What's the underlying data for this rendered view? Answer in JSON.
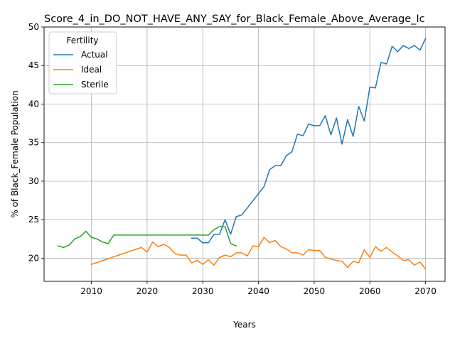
{
  "chart_data": {
    "type": "line",
    "title": "Score_4_in_DO_NOT_HAVE_ANY_SAY_for_Black_Female_Above_Average_Ic",
    "xlabel": "Years",
    "ylabel": "% of Black_Female Population",
    "xlim": [
      2001.5,
      2073.5
    ],
    "ylim": [
      17.0,
      50.0
    ],
    "xticks": [
      2010,
      2020,
      2030,
      2040,
      2050,
      2060,
      2070
    ],
    "yticks": [
      20,
      25,
      30,
      35,
      40,
      45,
      50
    ],
    "grid": true,
    "legend": {
      "title": "Fertility",
      "position": "top-left"
    },
    "series": [
      {
        "name": "Actual",
        "color": "#1f77b4",
        "x": [
          2028,
          2029,
          2030,
          2031,
          2032,
          2033,
          2034,
          2035,
          2036,
          2037,
          2041,
          2042,
          2043,
          2044,
          2045,
          2046,
          2047,
          2048,
          2049,
          2050,
          2051,
          2052,
          2053,
          2054,
          2055,
          2056,
          2057,
          2058,
          2059,
          2060,
          2061,
          2062,
          2063,
          2064,
          2065,
          2066,
          2067,
          2068,
          2069,
          2070
        ],
        "values": [
          22.6,
          22.6,
          22.0,
          22.0,
          23.1,
          23.1,
          25.0,
          23.1,
          25.4,
          25.6,
          29.3,
          31.5,
          32.0,
          32.0,
          33.3,
          33.8,
          36.1,
          35.9,
          37.4,
          37.2,
          37.2,
          38.5,
          36.0,
          38.2,
          34.8,
          38.0,
          35.8,
          39.7,
          37.8,
          42.2,
          42.1,
          45.4,
          45.2,
          47.5,
          46.8,
          47.6,
          47.2,
          47.6,
          47.0,
          48.5
        ]
      },
      {
        "name": "Ideal",
        "color": "#ff7f0e",
        "x": [
          2010,
          2019,
          2020,
          2021,
          2022,
          2023,
          2024,
          2025,
          2026,
          2027,
          2028,
          2029,
          2030,
          2031,
          2032,
          2033,
          2034,
          2035,
          2036,
          2037,
          2038,
          2039,
          2040,
          2041,
          2042,
          2043,
          2044,
          2045,
          2046,
          2047,
          2048,
          2049,
          2050,
          2051,
          2052,
          2053,
          2054,
          2055,
          2056,
          2057,
          2058,
          2059,
          2060,
          2061,
          2062,
          2063,
          2064,
          2065,
          2066,
          2067,
          2068,
          2069,
          2070
        ],
        "values": [
          19.2,
          21.4,
          20.8,
          22.1,
          21.5,
          21.8,
          21.4,
          20.6,
          20.4,
          20.4,
          19.4,
          19.7,
          19.2,
          19.8,
          19.1,
          20.1,
          20.4,
          20.2,
          20.7,
          20.7,
          20.3,
          21.6,
          21.5,
          22.7,
          22.0,
          22.3,
          21.5,
          21.2,
          20.7,
          20.7,
          20.4,
          21.1,
          21.0,
          21.0,
          20.1,
          19.9,
          19.7,
          19.6,
          18.8,
          19.6,
          19.4,
          21.1,
          20.1,
          21.5,
          20.9,
          21.4,
          20.8,
          20.3,
          19.7,
          19.8,
          19.1,
          19.5,
          18.6
        ]
      },
      {
        "name": "Sterile",
        "color": "#2ca02c",
        "x": [
          2004,
          2005,
          2006,
          2007,
          2008,
          2009,
          2010,
          2011,
          2012,
          2013,
          2014,
          2030,
          2031,
          2032,
          2033,
          2034,
          2035,
          2036
        ],
        "values": [
          21.6,
          21.4,
          21.7,
          22.5,
          22.8,
          23.5,
          22.7,
          22.5,
          22.1,
          21.9,
          23.0,
          23.0,
          23.0,
          23.7,
          24.1,
          24.1,
          21.9,
          21.6
        ]
      }
    ]
  }
}
